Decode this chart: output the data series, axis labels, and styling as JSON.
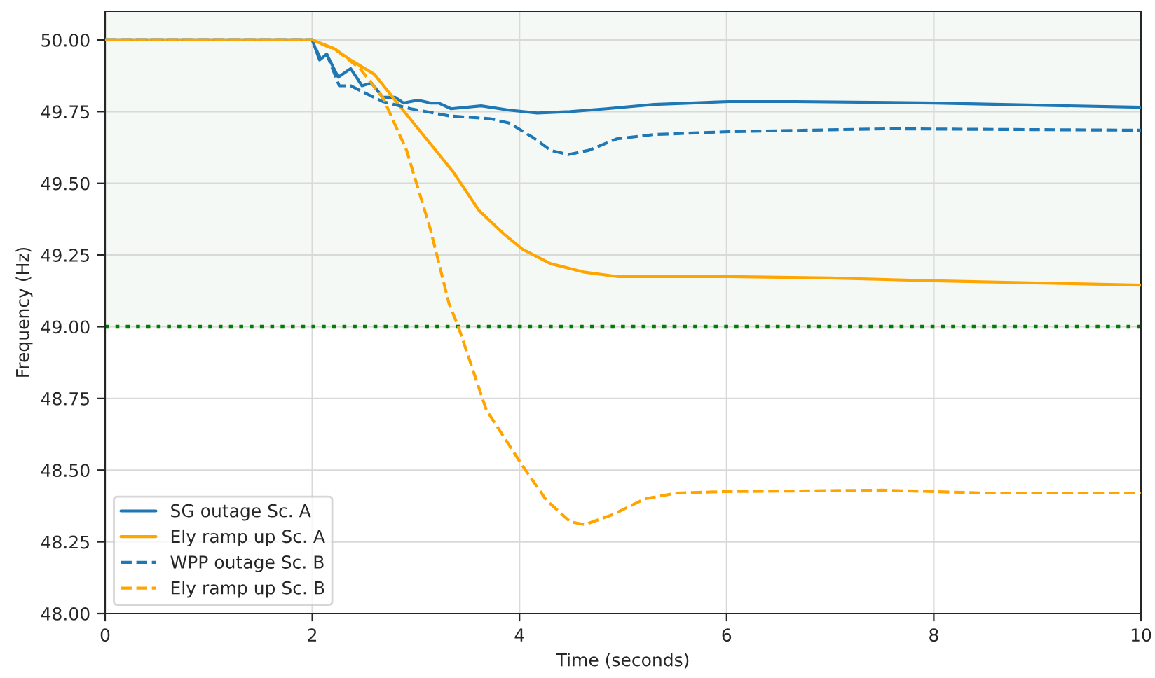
{
  "chart_data": {
    "type": "line",
    "xlabel": "Time (seconds)",
    "ylabel": "Frequency (Hz)",
    "xlim": [
      0,
      10
    ],
    "ylim": [
      48.0,
      50.1
    ],
    "xticks": [
      0,
      2,
      4,
      6,
      8,
      10
    ],
    "yticks": [
      {
        "value": 48.0,
        "label": "48.00"
      },
      {
        "value": 48.25,
        "label": "48.25"
      },
      {
        "value": 48.5,
        "label": "48.50"
      },
      {
        "value": 48.75,
        "label": "48.75"
      },
      {
        "value": 49.0,
        "label": "49.00"
      },
      {
        "value": 49.25,
        "label": "49.25"
      },
      {
        "value": 49.5,
        "label": "49.50"
      },
      {
        "value": 49.75,
        "label": "49.75"
      },
      {
        "value": 50.0,
        "label": "50.00"
      }
    ],
    "grid": true,
    "legend": "bottom left",
    "ref_lines": [
      {
        "axis": "y",
        "value": 49.0,
        "label": null,
        "color": "#008000",
        "line_style": "dotted"
      }
    ],
    "bands": [
      {
        "axis": "y",
        "from": 49.0,
        "to": 50.1,
        "label": null,
        "color": "#f5f9f5"
      }
    ],
    "series": [
      {
        "name": "SG outage Sc. A",
        "color": "#1f77b4",
        "line_style": "solid",
        "x": [
          0,
          2.0,
          2.07,
          2.14,
          2.25,
          2.37,
          2.48,
          2.57,
          2.68,
          2.8,
          2.88,
          3.02,
          3.14,
          3.22,
          3.34,
          3.63,
          3.9,
          4.17,
          4.49,
          4.84,
          5.3,
          6.02,
          6.66,
          8.01,
          10.0
        ],
        "values": [
          50.0,
          50.0,
          49.93,
          49.95,
          49.87,
          49.9,
          49.84,
          49.85,
          49.8,
          49.8,
          49.78,
          49.79,
          49.78,
          49.78,
          49.76,
          49.77,
          49.755,
          49.745,
          49.75,
          49.76,
          49.775,
          49.785,
          49.785,
          49.78,
          49.765
        ]
      },
      {
        "name": "Ely ramp up Sc. A",
        "color": "#ffa500",
        "line_style": "solid",
        "x": [
          0,
          2.0,
          2.21,
          2.37,
          2.6,
          2.82,
          3.09,
          3.36,
          3.61,
          3.86,
          4.03,
          4.3,
          4.63,
          4.94,
          6.02,
          7.0,
          8.0,
          10.0
        ],
        "values": [
          50.0,
          50.0,
          49.97,
          49.93,
          49.88,
          49.78,
          49.66,
          49.54,
          49.405,
          49.32,
          49.27,
          49.22,
          49.19,
          49.175,
          49.175,
          49.17,
          49.16,
          49.145
        ]
      },
      {
        "name": "WPP outage Sc. B",
        "color": "#1f77b4",
        "line_style": "dashed",
        "x": [
          0,
          2.0,
          2.07,
          2.14,
          2.26,
          2.37,
          2.48,
          2.68,
          2.95,
          3.32,
          3.72,
          3.9,
          4.13,
          4.3,
          4.47,
          4.67,
          4.94,
          5.3,
          6.02,
          7.55,
          10.0
        ],
        "values": [
          50.0,
          50.0,
          49.94,
          49.95,
          49.84,
          49.84,
          49.82,
          49.785,
          49.76,
          49.735,
          49.725,
          49.71,
          49.66,
          49.615,
          49.6,
          49.615,
          49.655,
          49.67,
          49.68,
          49.69,
          49.685
        ]
      },
      {
        "name": "Ely ramp up Sc. B",
        "color": "#ffa500",
        "line_style": "dashed",
        "x": [
          0,
          2.0,
          2.23,
          2.46,
          2.68,
          2.91,
          3.14,
          3.32,
          3.41,
          3.68,
          3.86,
          4.02,
          4.26,
          4.49,
          4.63,
          4.9,
          5.21,
          5.52,
          5.98,
          7.5,
          8.5,
          10.0
        ],
        "values": [
          50.0,
          50.0,
          49.965,
          49.9,
          49.8,
          49.615,
          49.34,
          49.08,
          49.0,
          48.71,
          48.61,
          48.52,
          48.395,
          48.32,
          48.31,
          48.345,
          48.4,
          48.42,
          48.425,
          48.43,
          48.42,
          48.42
        ]
      }
    ]
  }
}
